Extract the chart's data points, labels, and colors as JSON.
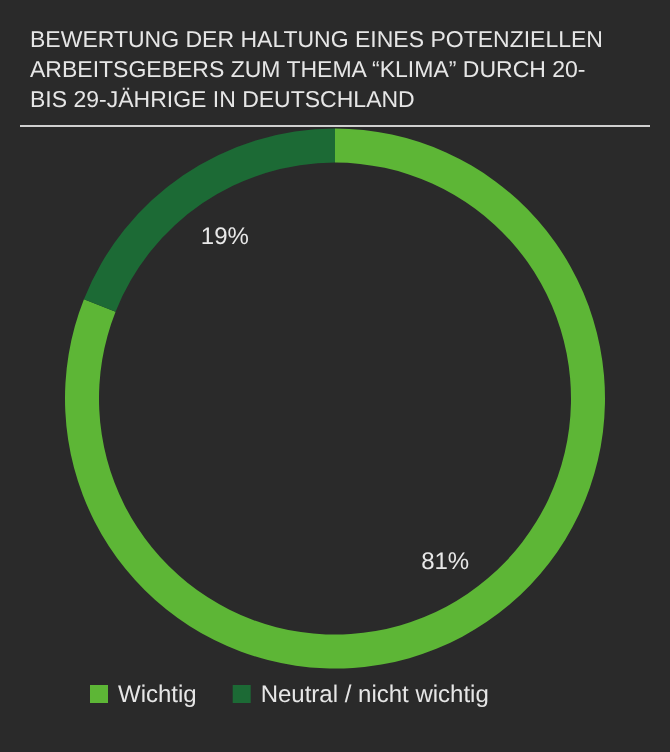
{
  "chart_data": {
    "type": "donut",
    "title": "BEWERTUNG DER HALTUNG EINES POTENZIELLEN ARBEITSGEBERS ZUM THEMA “KLIMA” DURCH 20- BIS 29-JÄHRIGE IN DEUTSCHLAND",
    "categories": [
      "Wichtig",
      "Neutral / nicht wichtig"
    ],
    "values": [
      81,
      19
    ],
    "colors": [
      "#5db636",
      "#1c6a35"
    ],
    "value_labels": [
      "81%",
      "19%"
    ],
    "legend": "bottom left"
  }
}
